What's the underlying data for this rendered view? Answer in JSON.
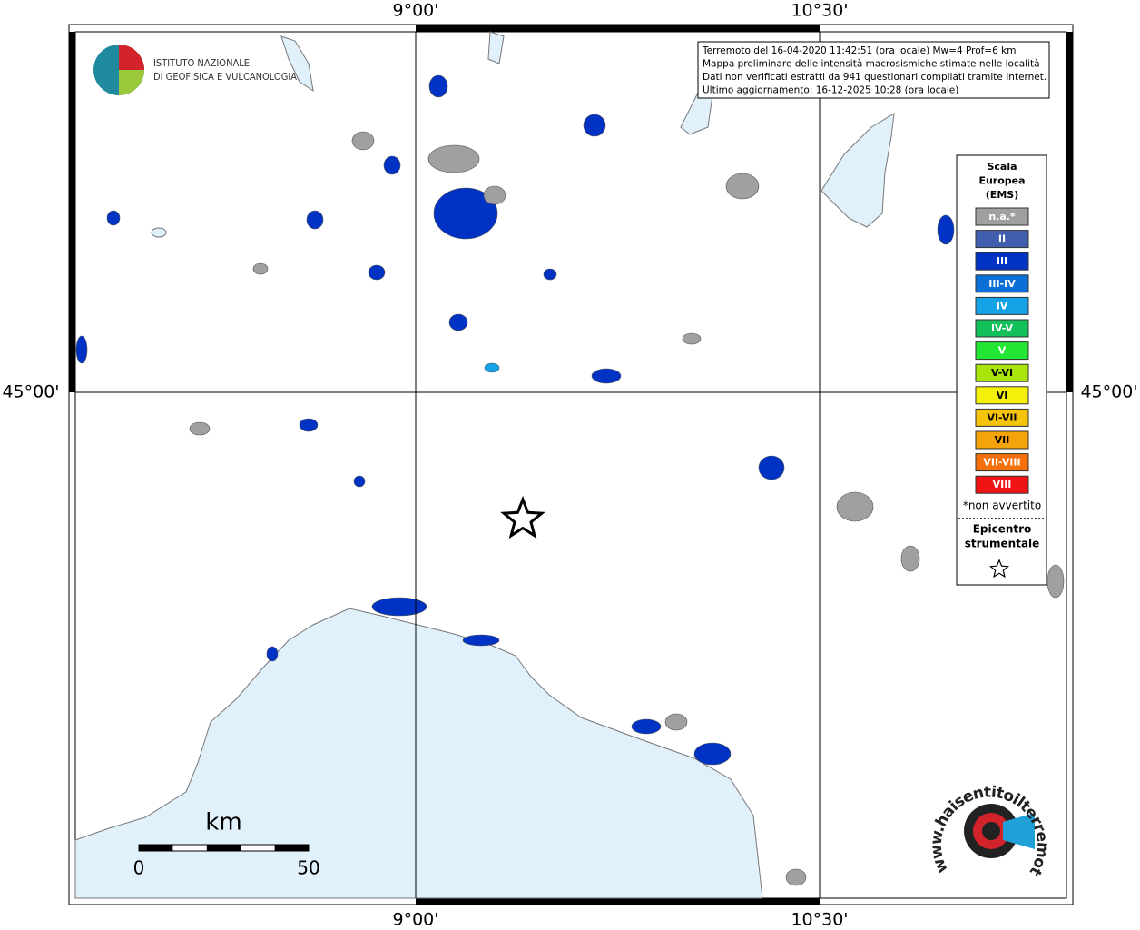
{
  "graticule": {
    "lon_labels": [
      "9°00'",
      "10°30'"
    ],
    "lat_labels": [
      "45°00'"
    ]
  },
  "logo_ingv": {
    "lines": [
      "ISTITUTO NAZIONALE",
      "DI GEOFISICA E VULCANOLOGIA"
    ]
  },
  "info_box": {
    "lines": [
      "Terremoto del 16-04-2020 11:42:51 (ora locale) Mw=4 Prof=6 km",
      "Mappa preliminare delle intensità macrosismiche stimate nelle località",
      "Dati non verificati estratti da 941 questionari compilati tramite Internet.",
      "Ultimo aggiornamento: 16-12-2025 10:28 (ora locale)"
    ]
  },
  "legend": {
    "title": [
      "Scala",
      "Europea",
      "(EMS)"
    ],
    "items": [
      {
        "label": "n.a.*",
        "color": "#a0a0a0"
      },
      {
        "label": "II",
        "color": "#3f5fae"
      },
      {
        "label": "III",
        "color": "#0033c4"
      },
      {
        "label": "III-IV",
        "color": "#0a6fd6"
      },
      {
        "label": "IV",
        "color": "#14a3e6"
      },
      {
        "label": "IV-V",
        "color": "#12c15a"
      },
      {
        "label": "V",
        "color": "#22e633"
      },
      {
        "label": "V-VI",
        "color": "#a8e60a"
      },
      {
        "label": "VI",
        "color": "#f5f00a"
      },
      {
        "label": "VI-VII",
        "color": "#f5c30a"
      },
      {
        "label": "VII",
        "color": "#f5a30a"
      },
      {
        "label": "VII-VIII",
        "color": "#f5700a"
      },
      {
        "label": "VIII",
        "color": "#f01414"
      }
    ],
    "note": "*non avvertito",
    "epicenter_title": [
      "Epicentro",
      "strumentale"
    ]
  },
  "scale_bar": {
    "unit": "km",
    "ticks": [
      0,
      50
    ]
  },
  "footer_logo": {
    "text": "www.haisentitoilterremoto.it"
  }
}
